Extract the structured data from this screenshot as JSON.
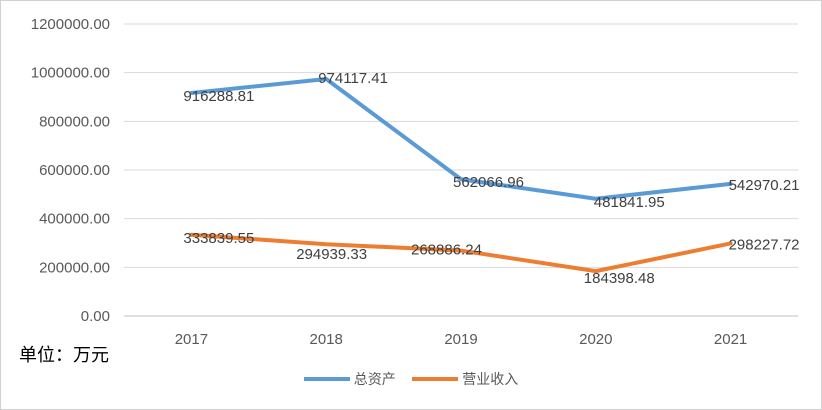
{
  "unit_label": "单位：万元",
  "colors": {
    "series1": "#5B9BD5",
    "series2": "#ED7D31",
    "grid": "#d9d9d9"
  },
  "chart_data": {
    "type": "line",
    "categories": [
      "2017",
      "2018",
      "2019",
      "2020",
      "2021"
    ],
    "series": [
      {
        "name": "总资产",
        "values": [
          916288.81,
          974117.41,
          562066.96,
          481841.95,
          542970.21
        ],
        "labels": [
          "916288.81",
          "974117.41",
          "562066.96",
          "481841.95",
          "542970.21"
        ]
      },
      {
        "name": "营业收入",
        "values": [
          333839.55,
          294939.33,
          268886.24,
          184398.48,
          298227.72
        ],
        "labels": [
          "333839.55",
          "294939.33",
          "268886.24",
          "184398.48",
          "298227.72"
        ]
      }
    ],
    "ylim": [
      0,
      1200000
    ],
    "yticks": [
      "0.00",
      "200000.00",
      "400000.00",
      "600000.00",
      "800000.00",
      "1000000.00",
      "1200000.00"
    ],
    "grid": true,
    "legend": "bottom"
  }
}
